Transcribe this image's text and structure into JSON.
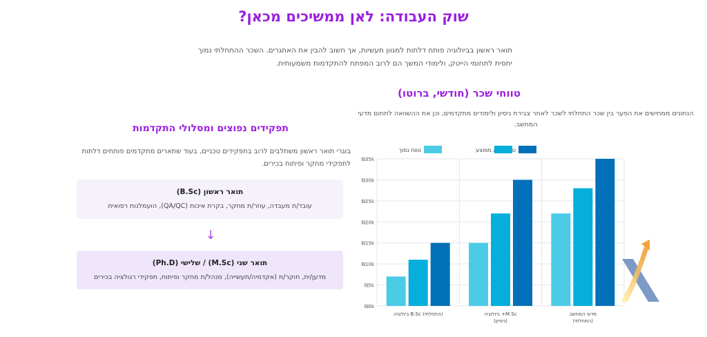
{
  "page_title": "שוק העבודה: לאן ממשיכים מכאן?",
  "intro_text": "תואר ראשון בביולוגיה פותח דלתות למגוון תעשיות, אך חשוב להבין את האתגרים. השכר ההתחלתי נמוך יחסית לתחומי הייטק, ולימודי המשך הם לרוב המפתח להתקדמות משמעותית.",
  "salary": {
    "title": "טווחי שכר (חודשי, ברוטו)",
    "description": "הנתונים ממחישים את הפער בין שכר התחלתי לשכר לאחר צבירת ניסיון ולימודים מתקדמים, וכן את ההשוואה לתחום מדעי המחשב."
  },
  "roles": {
    "title": "תפקידים נפוצים ומסלולי התקדמות",
    "description": "בוגרי תואר ראשון משתלבים לרוב בתפקידים טכניים, בעוד שתארים מתקדמים פותחים דלתות לתפקידי מחקר ופיתוח בכירים.",
    "card_1": {
      "title": "תואר ראשון (B.Sc)",
      "text": "עובד/ת מעבדה, עוזר/ת מחקר, בקרת איכות (QA/QC), הועמלנות רפואית"
    },
    "arrow": "↓",
    "card_2": {
      "title": "תואר שני (M.Sc) / שלישי (Ph.D)",
      "text": "מדען/ית, חוקר/ת (אקדמיה/תעשייה), מנהל/ת מחקר ופיתוח, תפקידי רגולציה בכירים"
    }
  },
  "chart_data": {
    "type": "bar",
    "categories": [
      [
        "ביולוגיה B.Sc (התחלתי)"
      ],
      [
        "ביולוגיה +M.Sc",
        "(ניסיון)"
      ],
      [
        "מדעי המחשב",
        "(התחלתי)"
      ]
    ],
    "series": [
      {
        "name": "טווח נמוך",
        "color": "#4ccbe6",
        "values": [
          7000,
          15000,
          22000
        ]
      },
      {
        "name": "ממוצע",
        "color": "#06aedb",
        "values": [
          11000,
          22000,
          28000
        ]
      },
      {
        "name": "טווח גבוה",
        "color": "#0270b8",
        "values": [
          15000,
          30000,
          35000
        ]
      }
    ],
    "ylim": [
      0,
      35000
    ],
    "yticks": [
      0,
      5000,
      10000,
      15000,
      20000,
      25000,
      30000,
      35000
    ],
    "ytick_labels": [
      "₪0k",
      "₪5k",
      "₪10k",
      "₪15k",
      "₪20k",
      "₪25k",
      "₪30k",
      "₪35k"
    ],
    "grid": true,
    "legend_position": "top-center"
  }
}
